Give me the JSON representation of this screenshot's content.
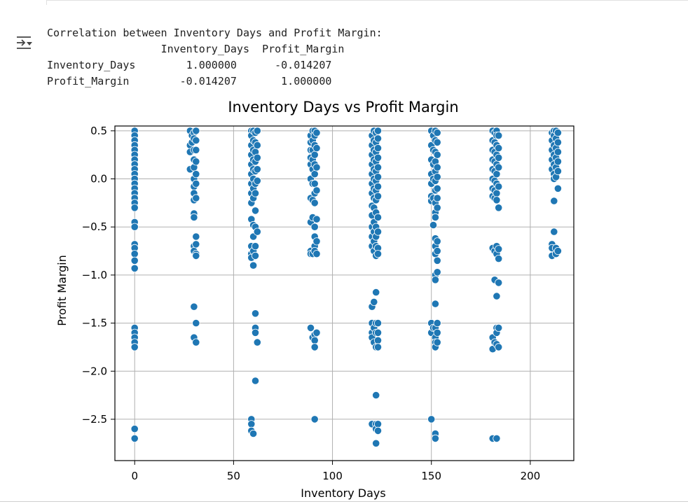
{
  "output": {
    "header": "Correlation between Inventory Days and Profit Margin:",
    "table": {
      "columns": [
        "Inventory_Days",
        "Profit_Margin"
      ],
      "rows": [
        {
          "label": "Inventory_Days",
          "values": [
            "1.000000",
            "-0.014207"
          ]
        },
        {
          "label": "Profit_Margin",
          "values": [
            "-0.014207",
            "1.000000"
          ]
        }
      ]
    },
    "icon": "output-collapse-icon"
  },
  "colors": {
    "point": "#1f77b4",
    "point_edge": "#ffffff",
    "grid": "#b0b0b0"
  },
  "chart_data": {
    "type": "scatter",
    "title": "Inventory Days vs Profit Margin",
    "xlabel": "Inventory Days",
    "ylabel": "Profit Margin",
    "xlim": [
      -10,
      222
    ],
    "ylim": [
      -2.93,
      0.55
    ],
    "xticks": [
      0,
      50,
      100,
      150,
      200
    ],
    "xtick_labels": [
      "0",
      "50",
      "100",
      "150",
      "200"
    ],
    "yticks": [
      0.5,
      0.0,
      -0.5,
      -1.0,
      -1.5,
      -2.0,
      -2.5
    ],
    "ytick_labels": [
      "0.5",
      "0.0",
      "−0.5",
      "−1.0",
      "−1.5",
      "−2.0",
      "−2.5"
    ],
    "grid": true,
    "points": [
      [
        0,
        0.5
      ],
      [
        0,
        0.45
      ],
      [
        0,
        0.4
      ],
      [
        0,
        0.35
      ],
      [
        0,
        0.3
      ],
      [
        0,
        0.25
      ],
      [
        0,
        0.2
      ],
      [
        0,
        0.15
      ],
      [
        0,
        0.1
      ],
      [
        0,
        0.05
      ],
      [
        0,
        0.0
      ],
      [
        0,
        -0.05
      ],
      [
        0,
        -0.1
      ],
      [
        0,
        -0.15
      ],
      [
        0,
        -0.2
      ],
      [
        0,
        -0.25
      ],
      [
        0,
        -0.3
      ],
      [
        0,
        -0.45
      ],
      [
        0,
        -0.5
      ],
      [
        0,
        -0.68
      ],
      [
        0,
        -0.72
      ],
      [
        0,
        -0.78
      ],
      [
        0,
        -0.85
      ],
      [
        0,
        -0.93
      ],
      [
        0,
        -1.55
      ],
      [
        0,
        -1.6
      ],
      [
        0,
        -1.65
      ],
      [
        0,
        -1.7
      ],
      [
        0,
        -1.75
      ],
      [
        0,
        -2.6
      ],
      [
        0,
        -2.7
      ],
      [
        28,
        0.5
      ],
      [
        28,
        0.35
      ],
      [
        28,
        0.28
      ],
      [
        28,
        0.1
      ],
      [
        29,
        0.45
      ],
      [
        29,
        0.38
      ],
      [
        30,
        0.48
      ],
      [
        30,
        0.42
      ],
      [
        30,
        0.3
      ],
      [
        30,
        0.2
      ],
      [
        30,
        0.12
      ],
      [
        30,
        0.0
      ],
      [
        30,
        -0.08
      ],
      [
        30,
        -0.15
      ],
      [
        30,
        -0.22
      ],
      [
        30,
        -0.36
      ],
      [
        30,
        -0.4
      ],
      [
        30,
        -0.7
      ],
      [
        30,
        -0.75
      ],
      [
        31,
        0.5
      ],
      [
        31,
        0.4
      ],
      [
        31,
        0.3
      ],
      [
        31,
        0.18
      ],
      [
        31,
        0.05
      ],
      [
        31,
        -0.05
      ],
      [
        31,
        -0.2
      ],
      [
        31,
        -0.6
      ],
      [
        31,
        -0.68
      ],
      [
        31,
        -0.78
      ],
      [
        31,
        -0.8
      ],
      [
        30,
        -1.33
      ],
      [
        31,
        -1.5
      ],
      [
        30,
        -1.65
      ],
      [
        31,
        -1.7
      ],
      [
        59,
        0.5
      ],
      [
        59,
        0.45
      ],
      [
        59,
        0.35
      ],
      [
        59,
        0.25
      ],
      [
        59,
        0.15
      ],
      [
        59,
        0.05
      ],
      [
        59,
        -0.05
      ],
      [
        59,
        -0.15
      ],
      [
        59,
        -0.25
      ],
      [
        59,
        -0.42
      ],
      [
        59,
        -0.7
      ],
      [
        59,
        -0.78
      ],
      [
        59,
        -0.82
      ],
      [
        59,
        -2.5
      ],
      [
        59,
        -2.55
      ],
      [
        59,
        -2.62
      ],
      [
        60,
        0.5
      ],
      [
        60,
        0.4
      ],
      [
        60,
        0.3
      ],
      [
        60,
        0.2
      ],
      [
        60,
        0.1
      ],
      [
        60,
        0.0
      ],
      [
        60,
        -0.1
      ],
      [
        60,
        -0.2
      ],
      [
        60,
        -0.48
      ],
      [
        60,
        -0.6
      ],
      [
        60,
        -0.75
      ],
      [
        60,
        -0.9
      ],
      [
        60,
        -2.65
      ],
      [
        61,
        0.48
      ],
      [
        61,
        0.38
      ],
      [
        61,
        0.28
      ],
      [
        61,
        0.18
      ],
      [
        61,
        0.08
      ],
      [
        61,
        -0.05
      ],
      [
        61,
        -0.15
      ],
      [
        61,
        -0.33
      ],
      [
        61,
        -0.5
      ],
      [
        61,
        -0.7
      ],
      [
        61,
        -0.8
      ],
      [
        61,
        -1.4
      ],
      [
        61,
        -1.55
      ],
      [
        61,
        -1.6
      ],
      [
        61,
        -2.1
      ],
      [
        62,
        0.5
      ],
      [
        62,
        0.35
      ],
      [
        62,
        0.22
      ],
      [
        62,
        0.1
      ],
      [
        62,
        -0.02
      ],
      [
        62,
        -0.55
      ],
      [
        62,
        -1.7
      ],
      [
        89,
        0.45
      ],
      [
        89,
        0.38
      ],
      [
        89,
        0.3
      ],
      [
        89,
        0.22
      ],
      [
        89,
        0.15
      ],
      [
        89,
        0.0
      ],
      [
        89,
        -0.2
      ],
      [
        89,
        -0.45
      ],
      [
        89,
        -0.75
      ],
      [
        89,
        -0.78
      ],
      [
        89,
        -1.55
      ],
      [
        90,
        0.5
      ],
      [
        90,
        0.4
      ],
      [
        90,
        0.3
      ],
      [
        90,
        0.2
      ],
      [
        90,
        0.1
      ],
      [
        90,
        -0.05
      ],
      [
        90,
        -0.22
      ],
      [
        90,
        -0.4
      ],
      [
        90,
        -0.78
      ],
      [
        90,
        -1.65
      ],
      [
        91,
        0.5
      ],
      [
        91,
        0.45
      ],
      [
        91,
        0.35
      ],
      [
        91,
        0.25
      ],
      [
        91,
        0.15
      ],
      [
        91,
        0.05
      ],
      [
        91,
        -0.05
      ],
      [
        91,
        -0.15
      ],
      [
        91,
        -0.25
      ],
      [
        91,
        -0.5
      ],
      [
        91,
        -0.6
      ],
      [
        91,
        -0.7
      ],
      [
        91,
        -0.75
      ],
      [
        91,
        -1.62
      ],
      [
        91,
        -1.68
      ],
      [
        91,
        -1.75
      ],
      [
        91,
        -2.5
      ],
      [
        92,
        0.48
      ],
      [
        92,
        0.32
      ],
      [
        92,
        0.12
      ],
      [
        92,
        -0.12
      ],
      [
        92,
        -0.42
      ],
      [
        92,
        -0.65
      ],
      [
        92,
        -0.78
      ],
      [
        92,
        -1.6
      ],
      [
        120,
        0.45
      ],
      [
        120,
        0.35
      ],
      [
        120,
        0.25
      ],
      [
        120,
        0.15
      ],
      [
        120,
        0.05
      ],
      [
        120,
        -0.05
      ],
      [
        120,
        -0.15
      ],
      [
        120,
        -0.28
      ],
      [
        120,
        -0.38
      ],
      [
        120,
        -0.5
      ],
      [
        120,
        -0.6
      ],
      [
        120,
        -0.7
      ],
      [
        120,
        -1.33
      ],
      [
        120,
        -1.5
      ],
      [
        120,
        -1.6
      ],
      [
        120,
        -1.65
      ],
      [
        120,
        -2.55
      ],
      [
        121,
        0.5
      ],
      [
        121,
        0.4
      ],
      [
        121,
        0.3
      ],
      [
        121,
        0.2
      ],
      [
        121,
        0.1
      ],
      [
        121,
        0.0
      ],
      [
        121,
        -0.1
      ],
      [
        121,
        -0.2
      ],
      [
        121,
        -0.3
      ],
      [
        121,
        -0.45
      ],
      [
        121,
        -0.55
      ],
      [
        121,
        -0.65
      ],
      [
        121,
        -0.75
      ],
      [
        121,
        -1.28
      ],
      [
        121,
        -1.55
      ],
      [
        121,
        -1.7
      ],
      [
        122,
        0.48
      ],
      [
        122,
        0.38
      ],
      [
        122,
        0.28
      ],
      [
        122,
        0.18
      ],
      [
        122,
        0.08
      ],
      [
        122,
        -0.02
      ],
      [
        122,
        -0.12
      ],
      [
        122,
        -0.22
      ],
      [
        122,
        -0.35
      ],
      [
        122,
        -0.5
      ],
      [
        122,
        -0.6
      ],
      [
        122,
        -0.7
      ],
      [
        122,
        -0.8
      ],
      [
        122,
        -1.18
      ],
      [
        122,
        -1.5
      ],
      [
        122,
        -1.6
      ],
      [
        122,
        -1.75
      ],
      [
        122,
        -2.25
      ],
      [
        122,
        -2.55
      ],
      [
        122,
        -2.6
      ],
      [
        122,
        -2.75
      ],
      [
        123,
        0.5
      ],
      [
        123,
        0.42
      ],
      [
        123,
        0.32
      ],
      [
        123,
        0.22
      ],
      [
        123,
        0.12
      ],
      [
        123,
        0.02
      ],
      [
        123,
        -0.08
      ],
      [
        123,
        -0.18
      ],
      [
        123,
        -0.4
      ],
      [
        123,
        -0.55
      ],
      [
        123,
        -0.72
      ],
      [
        123,
        -0.78
      ],
      [
        123,
        -1.5
      ],
      [
        123,
        -1.6
      ],
      [
        123,
        -1.68
      ],
      [
        123,
        -1.75
      ],
      [
        123,
        -2.55
      ],
      [
        123,
        -2.62
      ],
      [
        150,
        0.5
      ],
      [
        150,
        0.35
      ],
      [
        150,
        0.2
      ],
      [
        150,
        0.05
      ],
      [
        150,
        -0.05
      ],
      [
        150,
        -0.18
      ],
      [
        150,
        -0.23
      ],
      [
        150,
        -1.5
      ],
      [
        150,
        -1.6
      ],
      [
        150,
        -2.5
      ],
      [
        151,
        0.45
      ],
      [
        151,
        0.3
      ],
      [
        151,
        0.15
      ],
      [
        151,
        0.0
      ],
      [
        151,
        -0.2
      ],
      [
        151,
        -0.48
      ],
      [
        151,
        -1.55
      ],
      [
        152,
        0.5
      ],
      [
        152,
        0.4
      ],
      [
        152,
        0.28
      ],
      [
        152,
        0.18
      ],
      [
        152,
        0.08
      ],
      [
        152,
        -0.02
      ],
      [
        152,
        -0.12
      ],
      [
        152,
        -0.25
      ],
      [
        152,
        -0.35
      ],
      [
        152,
        -0.4
      ],
      [
        152,
        -0.62
      ],
      [
        152,
        -0.7
      ],
      [
        152,
        -0.78
      ],
      [
        152,
        -1.0
      ],
      [
        152,
        -1.05
      ],
      [
        152,
        -1.3
      ],
      [
        152,
        -1.55
      ],
      [
        152,
        -1.65
      ],
      [
        152,
        -1.7
      ],
      [
        152,
        -1.75
      ],
      [
        152,
        -2.65
      ],
      [
        152,
        -2.7
      ],
      [
        153,
        0.48
      ],
      [
        153,
        0.38
      ],
      [
        153,
        0.25
      ],
      [
        153,
        0.12
      ],
      [
        153,
        0.02
      ],
      [
        153,
        -0.1
      ],
      [
        153,
        -0.2
      ],
      [
        153,
        -0.3
      ],
      [
        153,
        -0.65
      ],
      [
        153,
        -0.75
      ],
      [
        153,
        -0.85
      ],
      [
        153,
        -0.97
      ],
      [
        153,
        -1.5
      ],
      [
        153,
        -1.6
      ],
      [
        153,
        -1.7
      ],
      [
        181,
        0.5
      ],
      [
        181,
        0.4
      ],
      [
        181,
        0.3
      ],
      [
        181,
        0.2
      ],
      [
        181,
        0.1
      ],
      [
        181,
        0.0
      ],
      [
        181,
        -0.1
      ],
      [
        181,
        -0.18
      ],
      [
        181,
        -0.72
      ],
      [
        181,
        -1.65
      ],
      [
        181,
        -1.77
      ],
      [
        181,
        -2.7
      ],
      [
        182,
        0.48
      ],
      [
        182,
        0.38
      ],
      [
        182,
        0.28
      ],
      [
        182,
        0.18
      ],
      [
        182,
        0.08
      ],
      [
        182,
        -0.02
      ],
      [
        182,
        -0.12
      ],
      [
        182,
        -0.2
      ],
      [
        182,
        -0.75
      ],
      [
        182,
        -1.05
      ],
      [
        182,
        -1.7
      ],
      [
        183,
        0.5
      ],
      [
        183,
        0.45
      ],
      [
        183,
        0.35
      ],
      [
        183,
        0.25
      ],
      [
        183,
        0.15
      ],
      [
        183,
        0.05
      ],
      [
        183,
        -0.05
      ],
      [
        183,
        -0.15
      ],
      [
        183,
        -0.22
      ],
      [
        183,
        -0.7
      ],
      [
        183,
        -0.78
      ],
      [
        183,
        -1.22
      ],
      [
        183,
        -1.55
      ],
      [
        183,
        -1.6
      ],
      [
        183,
        -1.72
      ],
      [
        183,
        -2.7
      ],
      [
        184,
        0.45
      ],
      [
        184,
        0.32
      ],
      [
        184,
        0.22
      ],
      [
        184,
        0.12
      ],
      [
        184,
        -0.08
      ],
      [
        184,
        -0.3
      ],
      [
        184,
        -0.73
      ],
      [
        184,
        -0.83
      ],
      [
        184,
        -1.08
      ],
      [
        184,
        -1.55
      ],
      [
        184,
        -1.75
      ],
      [
        211,
        0.48
      ],
      [
        211,
        0.4
      ],
      [
        211,
        0.3
      ],
      [
        211,
        0.2
      ],
      [
        211,
        0.1
      ],
      [
        211,
        -0.68
      ],
      [
        211,
        -0.72
      ],
      [
        211,
        -0.8
      ],
      [
        212,
        0.5
      ],
      [
        212,
        0.45
      ],
      [
        212,
        0.35
      ],
      [
        212,
        0.25
      ],
      [
        212,
        0.15
      ],
      [
        212,
        0.05
      ],
      [
        212,
        0.0
      ],
      [
        212,
        -0.23
      ],
      [
        212,
        -0.55
      ],
      [
        213,
        0.5
      ],
      [
        213,
        0.42
      ],
      [
        213,
        0.32
      ],
      [
        213,
        0.22
      ],
      [
        213,
        0.12
      ],
      [
        213,
        0.02
      ],
      [
        213,
        -0.72
      ],
      [
        213,
        -0.78
      ],
      [
        214,
        0.48
      ],
      [
        214,
        0.38
      ],
      [
        214,
        0.28
      ],
      [
        214,
        0.18
      ],
      [
        214,
        0.08
      ],
      [
        214,
        -0.1
      ],
      [
        214,
        -0.75
      ]
    ]
  }
}
